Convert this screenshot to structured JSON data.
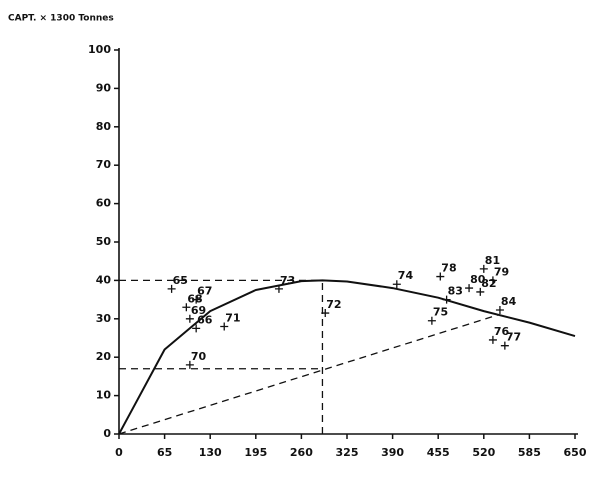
{
  "chart_data": {
    "type": "scatter",
    "y_label": "CAPT. × 1300 Tonnes",
    "xlim": [
      0,
      650
    ],
    "ylim": [
      0,
      100
    ],
    "xticks": [
      0,
      65,
      130,
      195,
      260,
      325,
      390,
      455,
      520,
      585,
      650
    ],
    "yticks": [
      0,
      10,
      20,
      30,
      40,
      50,
      60,
      70,
      80,
      90,
      100
    ],
    "color": "#111111",
    "x": [
      75,
      110,
      96,
      101,
      110,
      101,
      150,
      228,
      294,
      396,
      458,
      467,
      446,
      499,
      520,
      533,
      515,
      543,
      533,
      550
    ],
    "y": [
      37.8,
      35,
      33,
      30,
      27.5,
      18,
      28,
      37.8,
      31.5,
      39,
      41,
      35,
      29.5,
      38,
      43,
      40,
      37,
      32.3,
      24.5,
      23
    ],
    "point_labels": [
      "65",
      "67",
      "68",
      "69",
      "66",
      "70",
      "71",
      "73",
      "72",
      "74",
      "78",
      "83",
      "75",
      "80",
      "81",
      "79",
      "82",
      "84",
      "76",
      "77"
    ],
    "curve": {
      "x": [
        0,
        65,
        130,
        195,
        260,
        290,
        325,
        390,
        455,
        520,
        585,
        650
      ],
      "y": [
        0,
        22,
        32,
        37.5,
        39.8,
        40,
        39.7,
        38,
        35.5,
        32,
        29,
        25.5
      ]
    },
    "reference_lines": [
      {
        "x": [
          0,
          290
        ],
        "y": [
          40,
          40
        ]
      },
      {
        "x": [
          290,
          290
        ],
        "y": [
          0,
          40
        ]
      },
      {
        "x": [
          0,
          290
        ],
        "y": [
          17,
          17
        ]
      },
      {
        "x": [
          0,
          540
        ],
        "y": [
          0,
          31
        ]
      }
    ]
  }
}
